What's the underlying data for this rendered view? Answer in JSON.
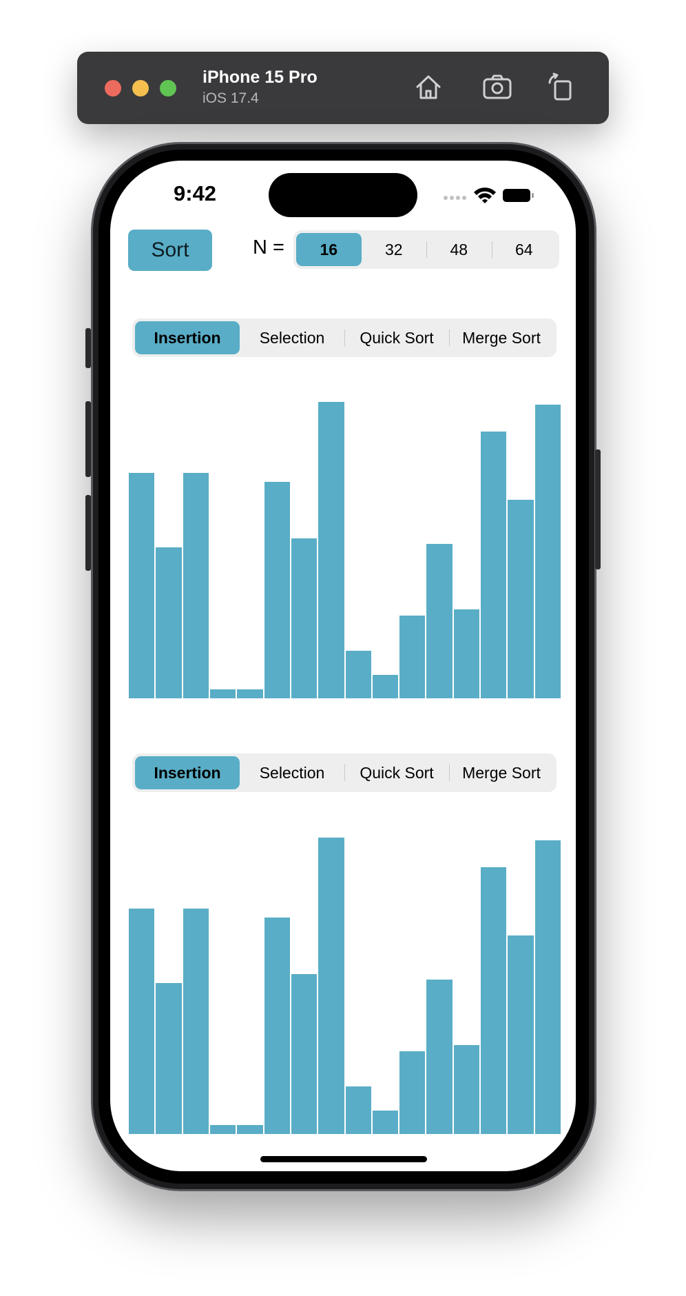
{
  "simulator": {
    "device_name": "iPhone 15 Pro",
    "os_version": "iOS 17.4",
    "icons": [
      "home-icon",
      "screenshot-icon",
      "rotate-icon"
    ],
    "traffic_lights": [
      "#ed6a5e",
      "#f4bf4f",
      "#61c554"
    ]
  },
  "status_bar": {
    "time": "9:42",
    "icons": [
      "cellular-signal-icon",
      "wifi-icon",
      "battery-icon"
    ]
  },
  "toolbar": {
    "sort_label": "Sort",
    "n_label": "N =",
    "n_options": [
      "16",
      "32",
      "48",
      "64"
    ],
    "n_selected": "16"
  },
  "panels": [
    {
      "algorithms": [
        "Insertion",
        "Selection",
        "Quick Sort",
        "Merge Sort"
      ],
      "selected": "Insertion"
    },
    {
      "algorithms": [
        "Insertion",
        "Selection",
        "Quick Sort",
        "Merge Sort"
      ],
      "selected": "Insertion"
    }
  ],
  "accent_color": "#59adc6",
  "chart_data": [
    {
      "type": "bar",
      "values": [
        76,
        51,
        76,
        3,
        3,
        73,
        54,
        100,
        16,
        8,
        28,
        52,
        30,
        90,
        67,
        99
      ],
      "ylim": [
        0,
        100
      ]
    },
    {
      "type": "bar",
      "values": [
        76,
        51,
        76,
        3,
        3,
        73,
        54,
        100,
        16,
        8,
        28,
        52,
        30,
        90,
        67,
        99
      ],
      "ylim": [
        0,
        100
      ]
    }
  ]
}
